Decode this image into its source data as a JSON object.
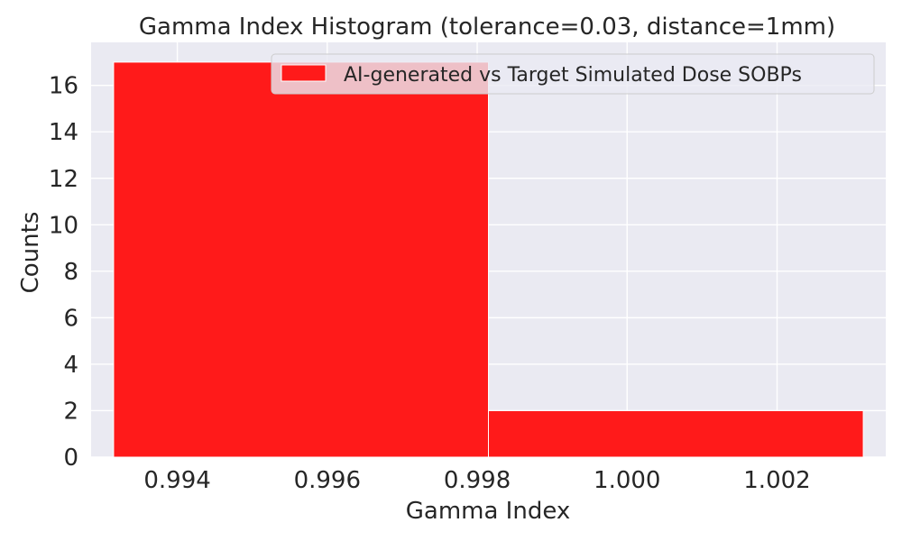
{
  "chart_data": {
    "type": "bar",
    "title": "Gamma Index Histogram (tolerance=0.03, distance=1mm)",
    "xlabel": "Gamma Index",
    "ylabel": "Counts",
    "xlim": [
      0.99285,
      1.00345
    ],
    "ylim": [
      0,
      17.85
    ],
    "x_ticks": [
      0.994,
      0.996,
      0.998,
      1.0,
      1.002
    ],
    "x_tick_labels": [
      "0.994",
      "0.996",
      "0.998",
      "1.000",
      "1.002"
    ],
    "y_ticks": [
      0,
      2,
      4,
      6,
      8,
      10,
      12,
      14,
      16
    ],
    "y_tick_labels": [
      "0",
      "2",
      "4",
      "6",
      "8",
      "10",
      "12",
      "14",
      "16"
    ],
    "grid": true,
    "legend_position": "top-right",
    "series": [
      {
        "name": "AI-generated vs Target Simulated Dose SOBPs",
        "color": "#ff1a1a",
        "bins": [
          {
            "start": 0.99315,
            "end": 0.99815,
            "count": 17
          },
          {
            "start": 0.99815,
            "end": 1.00315,
            "count": 2
          }
        ]
      }
    ]
  },
  "colors": {
    "plot_background": "#eaeaf2",
    "grid": "#ffffff",
    "text": "#262626"
  }
}
